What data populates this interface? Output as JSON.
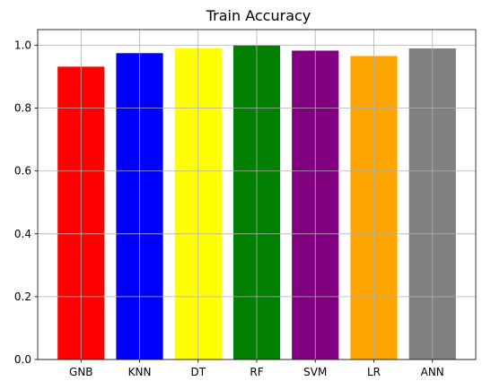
{
  "chart_data": {
    "type": "bar",
    "title": "Train Accuracy",
    "xlabel": "",
    "ylabel": "",
    "categories": [
      "GNB",
      "KNN",
      "DT",
      "RF",
      "SVM",
      "LR",
      "ANN"
    ],
    "values": [
      0.932,
      0.975,
      0.99,
      1.0,
      0.983,
      0.966,
      0.99
    ],
    "colors": [
      "#ff0000",
      "#0000ff",
      "#ffff00",
      "#008000",
      "#800080",
      "#ffa500",
      "#808080"
    ],
    "ylim": [
      0,
      1.05
    ],
    "yticks": [
      0.0,
      0.2,
      0.4,
      0.6,
      0.8,
      1.0
    ],
    "ytick_labels": [
      "0.0",
      "0.2",
      "0.4",
      "0.6",
      "0.8",
      "1.0"
    ],
    "grid": true,
    "legend": "none"
  }
}
